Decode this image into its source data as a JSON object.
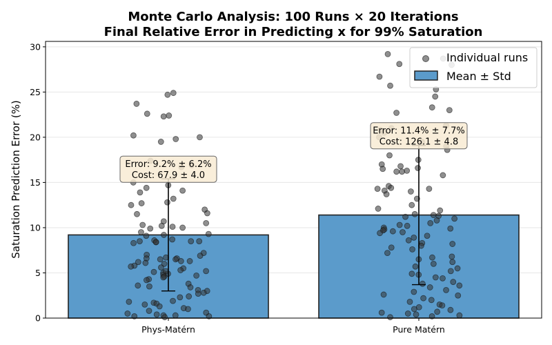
{
  "chart_data": {
    "type": "bar",
    "title": "Monte Carlo Analysis: 100 Runs × 20 Iterations",
    "subtitle": "Final Relative Error in Predicting x for 99% Saturation",
    "xlabel": "",
    "ylabel": "Saturation Prediction Error (%)",
    "ylim": [
      0,
      30.6
    ],
    "yticks": [
      "0",
      "5",
      "10",
      "15",
      "20",
      "25",
      "30"
    ],
    "grid": true,
    "legend_position": "top-right",
    "legend": {
      "individual_label": "Individual runs",
      "bar_label": "Mean ± Std"
    },
    "colors": {
      "bar": "#5b9bcb",
      "bar_edge": "#222222",
      "points": "#333333",
      "annotation_bg": "#f8ebd3",
      "annotation_edge": "#666666"
    },
    "categories": [
      "Phys-Matérn",
      "Pure Matérn"
    ],
    "means": [
      9.2,
      11.4
    ],
    "stds": [
      6.2,
      7.7
    ],
    "annotations": [
      {
        "error_text": "Error: 9.2% ± 6.2%",
        "cost_text": "Cost: 67.9 ± 4.0"
      },
      {
        "error_text": "Error: 11.4% ± 7.7%",
        "cost_text": "Cost: 126.1 ± 4.8"
      }
    ],
    "points": [
      [
        24.7,
        24.9,
        23.7,
        22.6,
        22.3,
        22.4,
        20.2,
        20.0,
        19.8,
        19.5,
        17.4,
        16.9,
        16.7,
        15.0,
        14.7,
        14.4,
        14.1,
        13.9,
        13.2,
        12.8,
        12.7,
        12.5,
        12.0,
        11.6,
        11.5,
        10.7,
        10.5,
        10.3,
        10.2,
        10.1,
        10.0,
        9.9,
        9.5,
        9.3,
        9.2,
        9.1,
        8.7,
        8.6,
        8.5,
        8.5,
        8.4,
        8.4,
        8.3,
        7.2,
        7.0,
        6.9,
        6.7,
        6.6,
        6.6,
        6.5,
        6.3,
        6.3,
        6.2,
        6.1,
        6.0,
        5.8,
        5.7,
        5.6,
        5.5,
        5.3,
        5.2,
        5.1,
        5.0,
        4.9,
        4.8,
        4.7,
        4.6,
        4.5,
        4.3,
        4.2,
        3.8,
        3.6,
        3.5,
        3.4,
        3.1,
        3.0,
        2.8,
        2.7,
        2.4,
        2.3,
        1.9,
        1.8,
        1.7,
        1.6,
        1.5,
        1.3,
        1.1,
        1.0,
        0.8,
        0.6,
        0.5,
        0.4,
        0.3,
        0.3,
        0.2,
        0.2,
        0.1,
        8.5,
        6.5,
        5.2
      ],
      [
        29.2,
        28.7,
        28.0,
        28.1,
        26.7,
        25.7,
        25.3,
        24.5,
        23.3,
        23.0,
        22.7,
        21.3,
        21.0,
        20.8,
        20.5,
        20.0,
        19.5,
        19.0,
        18.6,
        18.0,
        17.5,
        17.0,
        16.8,
        16.6,
        16.5,
        16.3,
        16.2,
        16.2,
        15.8,
        14.6,
        14.4,
        14.3,
        14.3,
        14.1,
        14.0,
        13.7,
        13.2,
        12.5,
        12.1,
        11.9,
        11.5,
        11.3,
        11.2,
        11.0,
        10.8,
        10.5,
        10.3,
        10.2,
        10.0,
        9.9,
        9.8,
        9.7,
        9.6,
        9.5,
        9.4,
        9.1,
        8.9,
        8.6,
        8.3,
        8.2,
        8.0,
        7.6,
        7.2,
        6.8,
        6.7,
        6.5,
        6.2,
        6.0,
        5.7,
        5.5,
        5.2,
        4.9,
        4.8,
        4.5,
        4.4,
        4.0,
        3.8,
        3.6,
        3.4,
        3.1,
        2.9,
        2.6,
        2.5,
        2.2,
        2.0,
        1.8,
        1.5,
        1.4,
        1.2,
        1.0,
        0.9,
        0.7,
        0.6,
        0.5,
        0.4,
        0.3,
        0.2,
        0.1,
        11.4,
        7.8
      ]
    ]
  }
}
